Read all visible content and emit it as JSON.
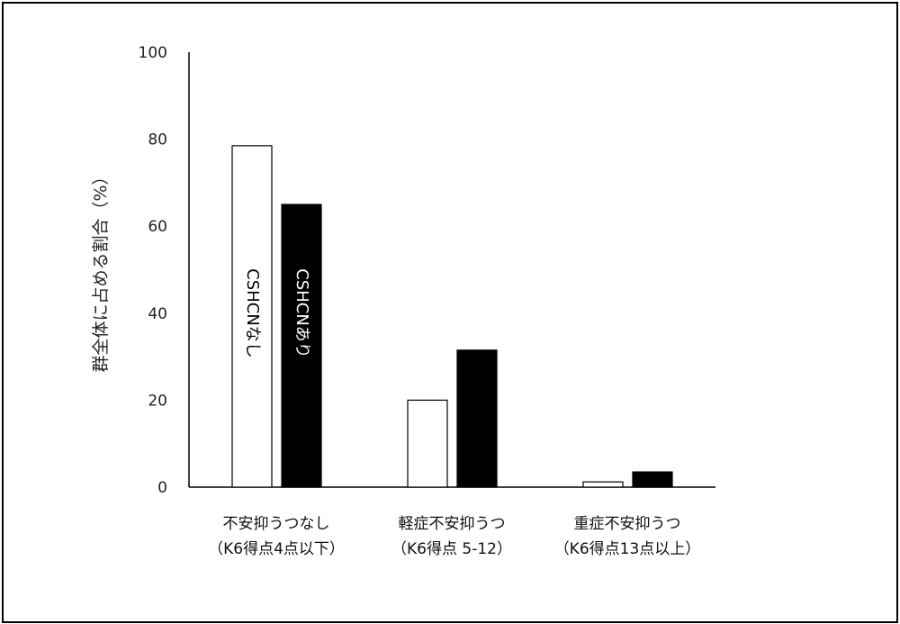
{
  "chart_data": {
    "type": "bar",
    "ylabel": "群全体に占める割合（%）",
    "ylim": [
      0,
      100
    ],
    "yticks": [
      0,
      20,
      40,
      60,
      80,
      100
    ],
    "categories": [
      [
        "不安抑うつなし",
        "（K6得点4点以下）"
      ],
      [
        "軽症不安抑うつ",
        "（K6得点 5-12）"
      ],
      [
        "重症不安抑うつ",
        "（K6得点13点以上）"
      ]
    ],
    "series": [
      {
        "name": "CSHCNなし",
        "fill": "#ffffff",
        "stroke": "#000000",
        "label_color": "#000000",
        "values": [
          78.5,
          20.0,
          1.2
        ]
      },
      {
        "name": "CSHCNあり",
        "fill": "#000000",
        "stroke": "#000000",
        "label_color": "#ffffff",
        "values": [
          65.0,
          31.5,
          3.5
        ]
      }
    ],
    "legend": "inside-bars",
    "grid": false
  }
}
